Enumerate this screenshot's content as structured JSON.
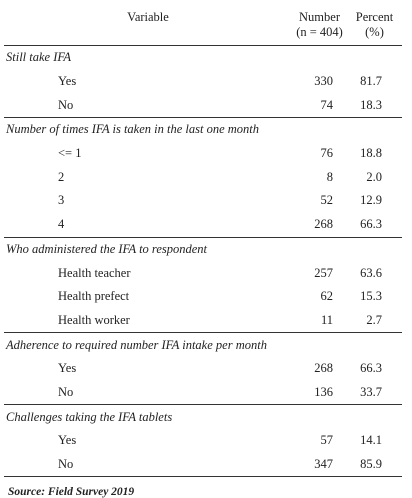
{
  "header": {
    "variable": "Variable",
    "number_line1": "Number",
    "number_line2": "(n = 404)",
    "percent_line1": "Percent",
    "percent_line2": "(%)"
  },
  "sections": [
    {
      "title": "Still take IFA",
      "rows": [
        {
          "label": "Yes",
          "number": "330",
          "percent": "81.7"
        },
        {
          "label": "No",
          "number": "74",
          "percent": "18.3"
        }
      ]
    },
    {
      "title": "Number of times IFA is taken in the last one month",
      "rows": [
        {
          "label": "<= 1",
          "number": "76",
          "percent": "18.8"
        },
        {
          "label": "2",
          "number": "8",
          "percent": "2.0"
        },
        {
          "label": "3",
          "number": "52",
          "percent": "12.9"
        },
        {
          "label": "4",
          "number": "268",
          "percent": "66.3"
        }
      ]
    },
    {
      "title": "Who administered the IFA to respondent",
      "rows": [
        {
          "label": "Health teacher",
          "number": "257",
          "percent": "63.6"
        },
        {
          "label": "Health prefect",
          "number": "62",
          "percent": "15.3"
        },
        {
          "label": "Health worker",
          "number": "11",
          "percent": "2.7"
        }
      ]
    },
    {
      "title": "Adherence to required number IFA intake per month",
      "rows": [
        {
          "label": "Yes",
          "number": "268",
          "percent": "66.3"
        },
        {
          "label": "No",
          "number": "136",
          "percent": "33.7"
        }
      ]
    },
    {
      "title": "Challenges taking the IFA tablets",
      "rows": [
        {
          "label": "Yes",
          "number": "57",
          "percent": "14.1"
        },
        {
          "label": "No",
          "number": "347",
          "percent": "85.9"
        }
      ]
    }
  ],
  "source": "Source: Field Survey 2019"
}
